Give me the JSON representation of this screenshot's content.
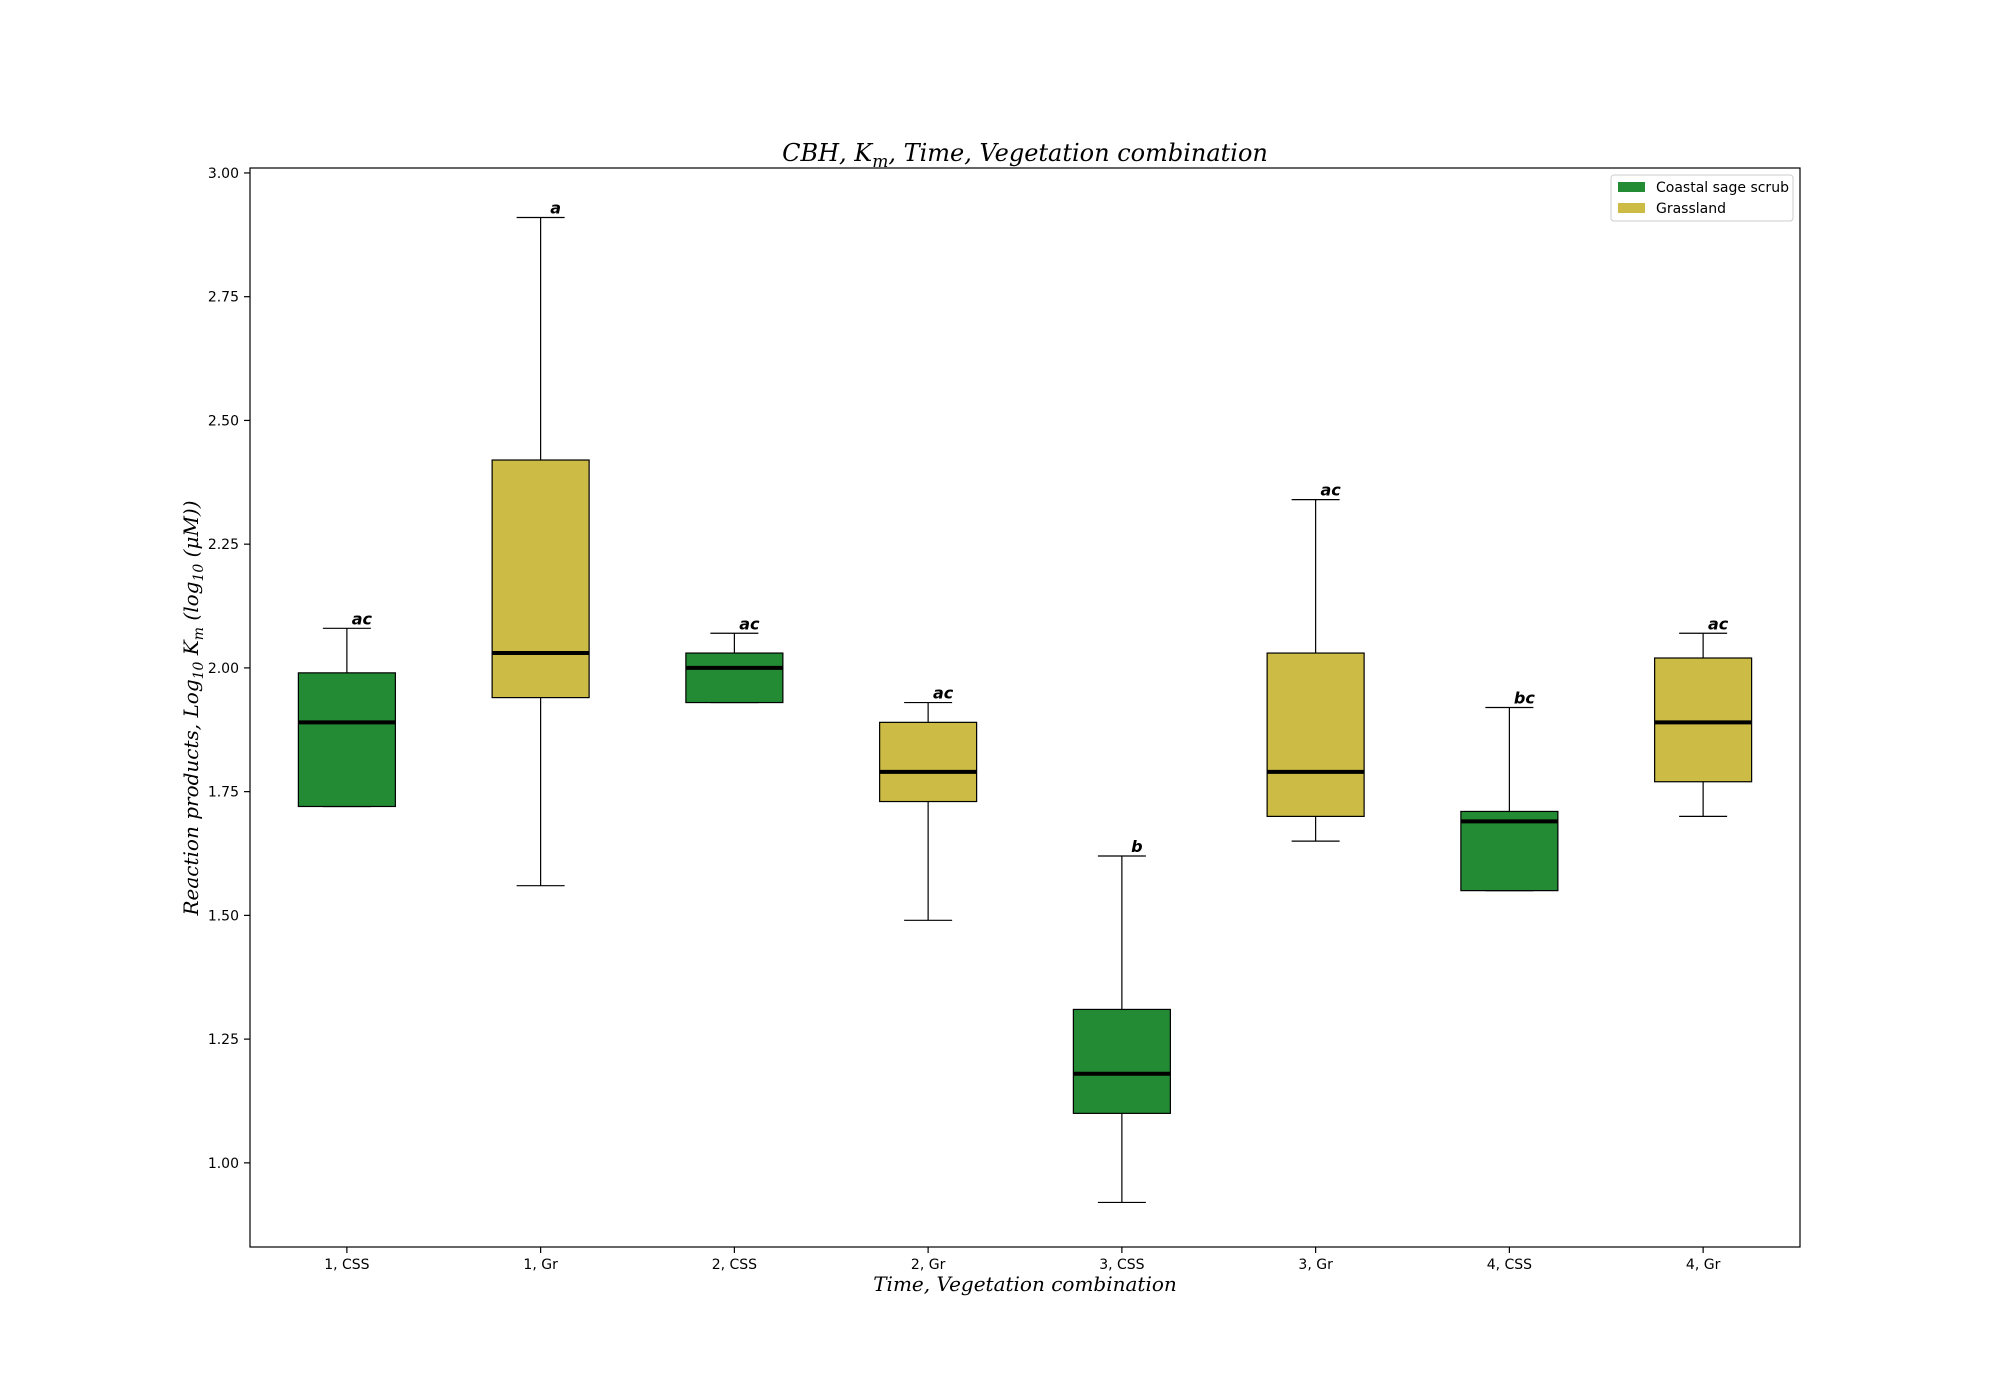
{
  "chart_data": {
    "type": "box",
    "title_parts": {
      "pre": "CBH, ",
      "sym": "K",
      "sub": "m",
      "post": ", Time, Vegetation combination"
    },
    "xlabel": "Time, Vegetation combination",
    "ylabel_parts": {
      "pre": "Reaction products, Log",
      "sub1": "10",
      "mid": " K",
      "sub2": "m",
      "post": " (log",
      "sub3": "10",
      "end": " (μM))"
    },
    "ylim": [
      0.83,
      3.01
    ],
    "yticks": [
      "1.00",
      "1.25",
      "1.50",
      "1.75",
      "2.00",
      "2.25",
      "2.50",
      "2.75",
      "3.00"
    ],
    "ytick_values": [
      1.0,
      1.25,
      1.5,
      1.75,
      2.0,
      2.25,
      2.5,
      2.75,
      3.0
    ],
    "categories": [
      "1, CSS",
      "1, Gr",
      "2, CSS",
      "2, Gr",
      "3, CSS",
      "3, Gr",
      "4, CSS",
      "4, Gr"
    ],
    "boxes": [
      {
        "group": "Coastal sage scrub",
        "whislo": 1.72,
        "q1": 1.72,
        "med": 1.89,
        "q3": 1.99,
        "whishi": 2.08,
        "letter": "ac"
      },
      {
        "group": "Grassland",
        "whislo": 1.56,
        "q1": 1.94,
        "med": 2.03,
        "q3": 2.42,
        "whishi": 2.91,
        "letter": "a"
      },
      {
        "group": "Coastal sage scrub",
        "whislo": 1.93,
        "q1": 1.93,
        "med": 2.0,
        "q3": 2.03,
        "whishi": 2.07,
        "letter": "ac"
      },
      {
        "group": "Grassland",
        "whislo": 1.49,
        "q1": 1.73,
        "med": 1.79,
        "q3": 1.89,
        "whishi": 1.93,
        "letter": "ac"
      },
      {
        "group": "Coastal sage scrub",
        "whislo": 0.92,
        "q1": 1.1,
        "med": 1.18,
        "q3": 1.31,
        "whishi": 1.62,
        "letter": "b"
      },
      {
        "group": "Grassland",
        "whislo": 1.65,
        "q1": 1.7,
        "med": 1.79,
        "q3": 2.03,
        "whishi": 2.34,
        "letter": "ac"
      },
      {
        "group": "Coastal sage scrub",
        "whislo": 1.55,
        "q1": 1.55,
        "med": 1.69,
        "q3": 1.71,
        "whishi": 1.92,
        "letter": "bc"
      },
      {
        "group": "Grassland",
        "whislo": 1.7,
        "q1": 1.77,
        "med": 1.89,
        "q3": 2.02,
        "whishi": 2.07,
        "letter": "ac"
      }
    ],
    "legend": {
      "placement": "top-right",
      "entries": [
        {
          "name": "Coastal sage scrub",
          "color": "#228b34"
        },
        {
          "name": "Grassland",
          "color": "#ccbb44"
        }
      ]
    },
    "grid": false
  }
}
